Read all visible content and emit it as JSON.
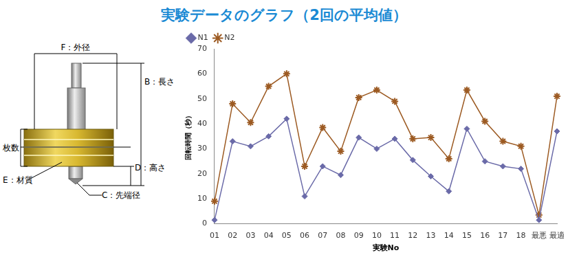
{
  "diagram": {
    "labels": {
      "F": "F：外径",
      "B": "B：長さ",
      "count": "枚数",
      "E": "E：材質",
      "D": "D：高さ",
      "C": "C：先端径"
    }
  },
  "chart_data": {
    "type": "line",
    "title": "実験データのグラフ（2回の平均値）",
    "x_label": "実験No",
    "y_label": "回転時間（秒）",
    "categories": [
      "01",
      "02",
      "03",
      "04",
      "05",
      "06",
      "07",
      "08",
      "09",
      "10",
      "11",
      "12",
      "13",
      "14",
      "15",
      "16",
      "17",
      "18",
      "最悪",
      "最適"
    ],
    "series": [
      {
        "name": "N1",
        "color": "#6a6aa8",
        "marker": "diamond",
        "values": [
          1.5,
          33,
          31,
          35,
          42,
          11,
          23,
          19.5,
          34.5,
          30,
          34,
          25.5,
          19,
          13,
          38,
          25,
          23,
          22,
          1.5,
          37
        ]
      },
      {
        "name": "N2",
        "color": "#9c5a22",
        "marker": "star",
        "values": [
          9,
          48,
          40.5,
          55,
          60,
          23,
          38.5,
          29,
          50.5,
          53.5,
          49,
          34,
          34.5,
          26,
          53.5,
          41,
          33,
          31,
          3.5,
          51
        ]
      }
    ],
    "ylim": [
      0,
      70
    ],
    "yticks": [
      0,
      10,
      20,
      30,
      40,
      50,
      60,
      70
    ],
    "grid": false,
    "legend": "top-left"
  }
}
